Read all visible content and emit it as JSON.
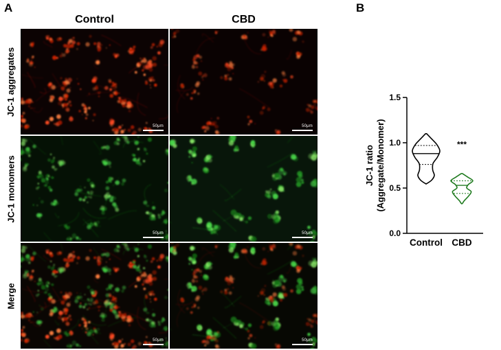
{
  "panel_a": {
    "label": "A",
    "column_headers": [
      "Control",
      "CBD"
    ],
    "row_labels": [
      "JC-1 aggregates",
      "JC-1 monomers",
      "Merge"
    ],
    "scale_bar_label": "50μm",
    "channels": {
      "aggregates_color": "#d92600",
      "monomers_color": "#28a828"
    }
  },
  "panel_b": {
    "label": "B"
  },
  "chart_data": {
    "type": "violin",
    "title": "",
    "categories": [
      "Control",
      "CBD"
    ],
    "ylabel": "JC-1 ratio (Aggregate/Monomer)",
    "ylabel_lines": [
      "JC-1 ratio",
      "(Aggregate/Monomer)"
    ],
    "ylim": [
      0.0,
      1.5
    ],
    "yticks": [
      "0.0",
      "0.5",
      "1.0",
      "1.5"
    ],
    "legend": "none",
    "significance": {
      "label": "***",
      "category": "CBD",
      "value": 0.95
    },
    "series": [
      {
        "name": "Control",
        "color": "#000000",
        "median": 0.88,
        "quartiles": [
          0.76,
          0.97
        ],
        "range": [
          0.55,
          1.1
        ],
        "profile": [
          [
            1.1,
            0.04
          ],
          [
            1.04,
            0.42
          ],
          [
            0.98,
            0.78
          ],
          [
            0.91,
            1.0
          ],
          [
            0.84,
            0.82
          ],
          [
            0.77,
            0.5
          ],
          [
            0.7,
            0.48
          ],
          [
            0.64,
            0.6
          ],
          [
            0.59,
            0.42
          ],
          [
            0.55,
            0.05
          ]
        ]
      },
      {
        "name": "CBD",
        "color": "#1e7a1e",
        "median": 0.53,
        "quartiles": [
          0.44,
          0.58
        ],
        "range": [
          0.33,
          0.66
        ],
        "profile": [
          [
            0.66,
            0.05
          ],
          [
            0.62,
            0.55
          ],
          [
            0.58,
            1.0
          ],
          [
            0.54,
            0.6
          ],
          [
            0.5,
            0.45
          ],
          [
            0.46,
            0.85
          ],
          [
            0.41,
            0.6
          ],
          [
            0.36,
            0.22
          ],
          [
            0.33,
            0.05
          ]
        ]
      }
    ]
  }
}
